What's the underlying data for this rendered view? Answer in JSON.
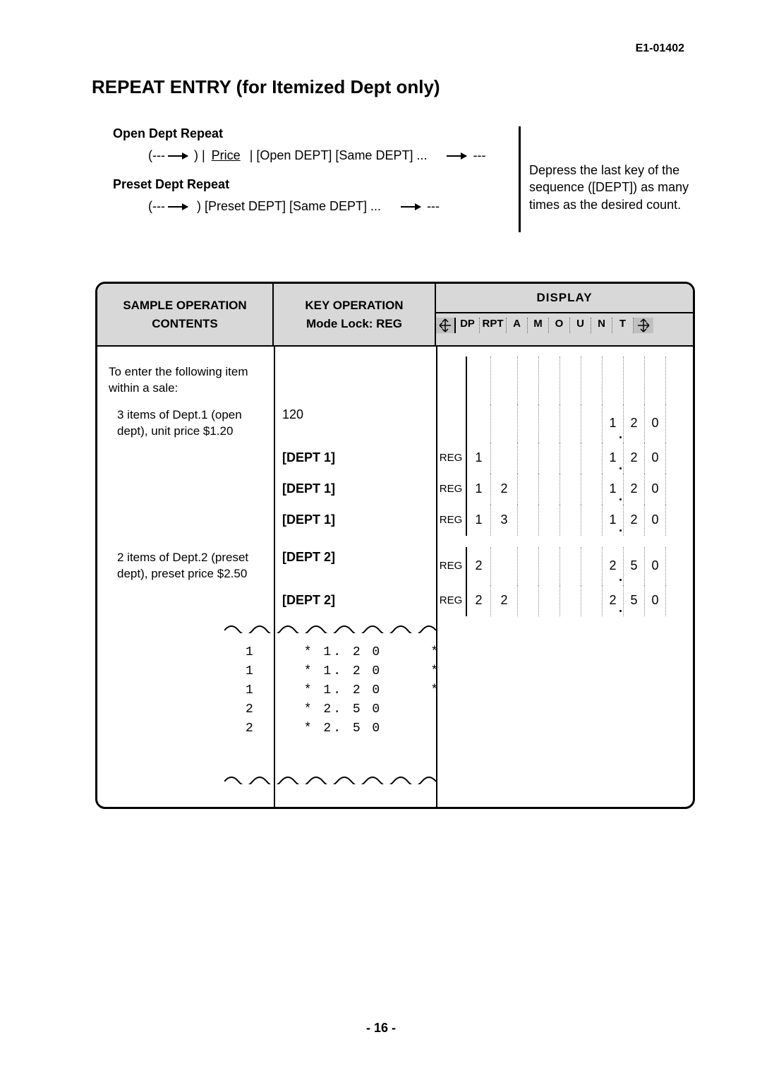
{
  "doc_id": "E1-01402",
  "title": "REPEAT ENTRY   (for Itemized Dept only)",
  "syntax": {
    "open_heading": "Open Dept Repeat",
    "open_line_prefix": "(---",
    "open_line_price": "Price",
    "open_line_rest": "| [Open DEPT] [Same DEPT] ...",
    "preset_heading": "Preset Dept Repeat",
    "preset_line_prefix": "(---",
    "preset_line_rest": ") [Preset DEPT] [Same DEPT] ...",
    "note": "Depress the last key of the sequence ([DEPT]) as many times as the desired count."
  },
  "table": {
    "header": {
      "contents_l1": "SAMPLE OPERATION",
      "contents_l2": "CONTENTS",
      "key_l1": "KEY OPERATION",
      "key_l2": "Mode Lock:  REG",
      "display": "DISPLAY",
      "disp_cols": [
        "DP",
        "RPT",
        "A",
        "M",
        "O",
        "U",
        "N",
        "T"
      ]
    },
    "rows": [
      {
        "contents": "To enter the following item within a sale:",
        "key": "",
        "disp": [
          "",
          "",
          "",
          "",
          "",
          "",
          "",
          "",
          "",
          "",
          ""
        ]
      },
      {
        "contents": "3 items of Dept.1 (open dept), unit price $1.20",
        "key": "120",
        "disp": [
          "",
          "",
          "",
          "",
          "",
          "",
          "",
          "1.",
          "2",
          "0",
          ""
        ]
      },
      {
        "contents": "",
        "key": "[DEPT 1]",
        "disp": [
          "REG",
          "1",
          "",
          "",
          "",
          "",
          "",
          "1.",
          "2",
          "0",
          ""
        ]
      },
      {
        "contents": "",
        "key": "[DEPT 1]",
        "disp": [
          "REG",
          "1",
          "2",
          "",
          "",
          "",
          "",
          "1.",
          "2",
          "0",
          ""
        ]
      },
      {
        "contents": "",
        "key": "[DEPT 1]",
        "disp": [
          "REG",
          "1",
          "3",
          "",
          "",
          "",
          "",
          "1.",
          "2",
          "0",
          ""
        ]
      },
      {
        "contents": "2 items of Dept.2 (preset dept), preset price $2.50",
        "key": "[DEPT 2]",
        "disp": [
          "REG",
          "2",
          "",
          "",
          "",
          "",
          "",
          "2.",
          "5",
          "0",
          ""
        ]
      },
      {
        "contents": "",
        "key": "[DEPT 2]",
        "disp": [
          "REG",
          "2",
          "2",
          "",
          "",
          "",
          "",
          "2.",
          "5",
          "0",
          ""
        ]
      }
    ],
    "receipt": [
      "1     * 1. 2 0     *",
      "1     * 1. 2 0     *",
      "1     * 1. 2 0     *",
      "2     * 2. 5 0",
      "2     * 2. 5 0"
    ]
  },
  "page_num": "- 16 -",
  "colors": {
    "bg": "#ffffff",
    "text": "#000000",
    "header_bg": "#d8d8d8",
    "border": "#000000",
    "dotted": "#888888"
  }
}
